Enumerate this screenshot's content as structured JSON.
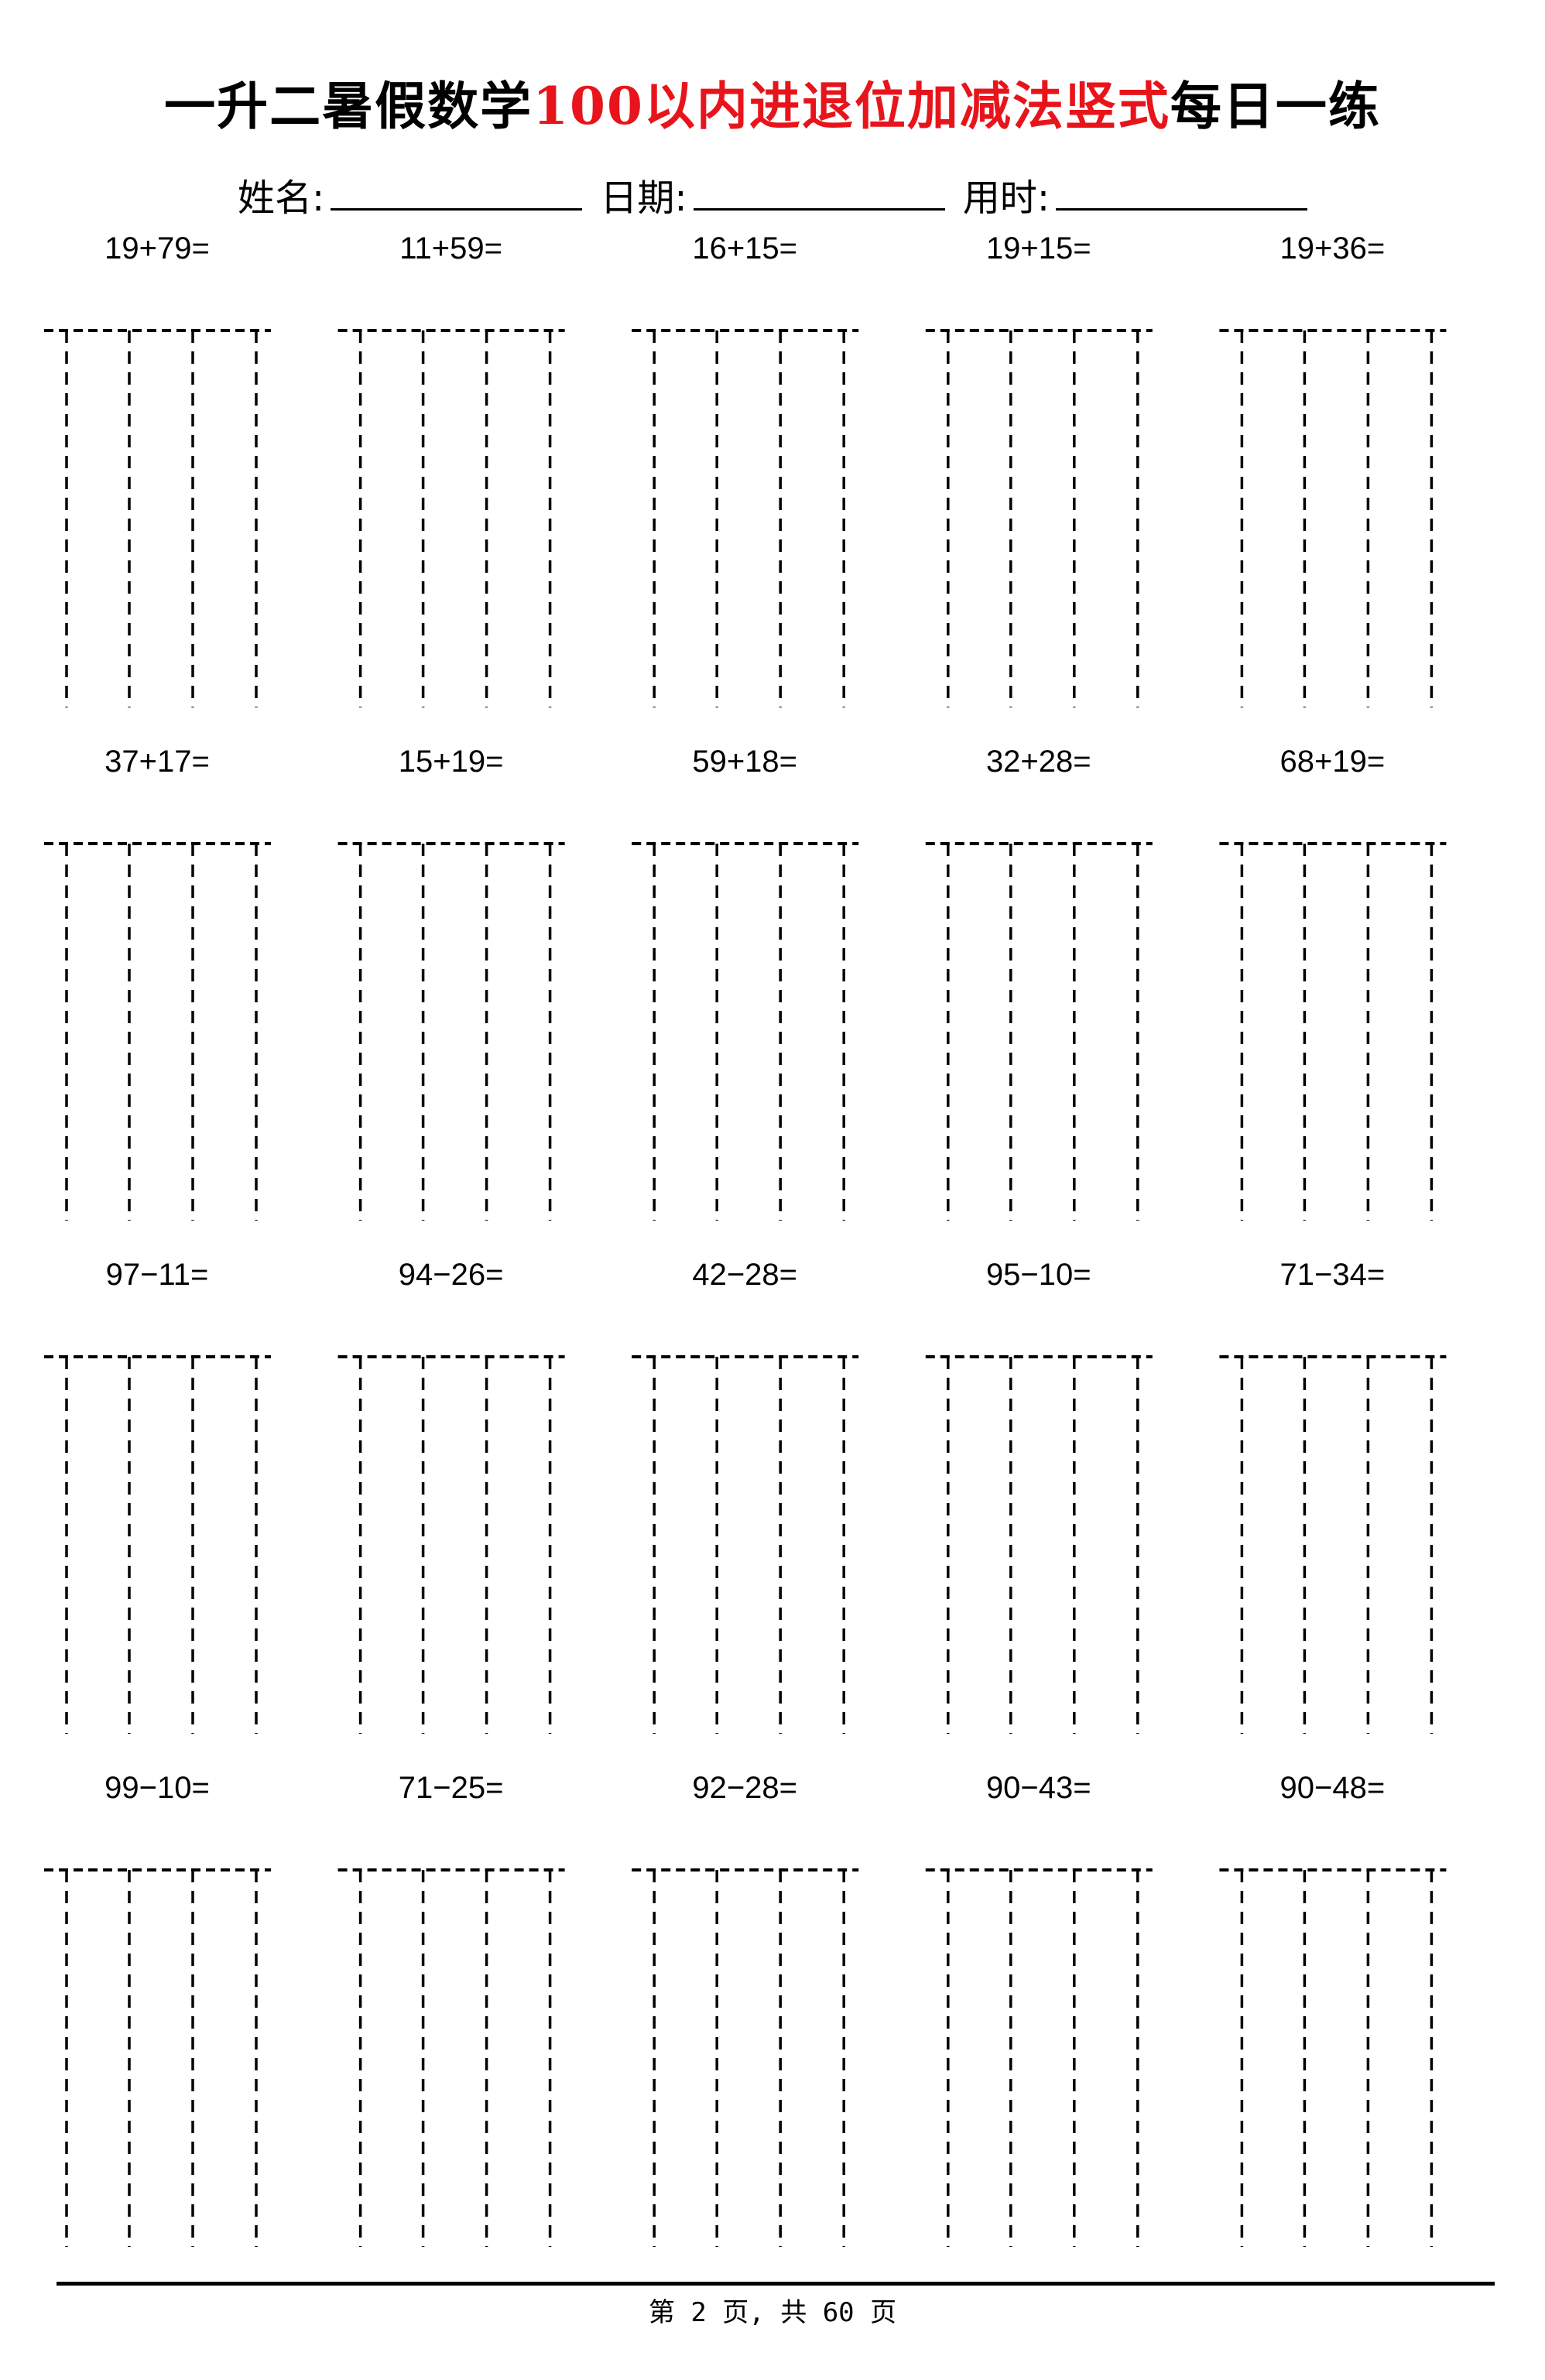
{
  "header": {
    "title_prefix": "一升二暑假数学",
    "title_highlight": "100以内进退位加减法竖式",
    "title_suffix": "每日一练",
    "highlight_color": "#e8141b",
    "name_label": "姓名:",
    "date_label": "日期:",
    "time_label": "用时:"
  },
  "problems": [
    [
      "19+79=",
      "11+59=",
      "16+15=",
      "19+15=",
      "19+36="
    ],
    [
      "37+17=",
      "15+19=",
      "59+18=",
      "32+28=",
      "68+19="
    ],
    [
      "97−11=",
      "94−26=",
      "42−28=",
      "95−10=",
      "71−34="
    ],
    [
      "99−10=",
      "71−25=",
      "92−28=",
      "90−43=",
      "90−48="
    ]
  ],
  "footer": {
    "page_text": "第 2 页, 共 60 页"
  }
}
